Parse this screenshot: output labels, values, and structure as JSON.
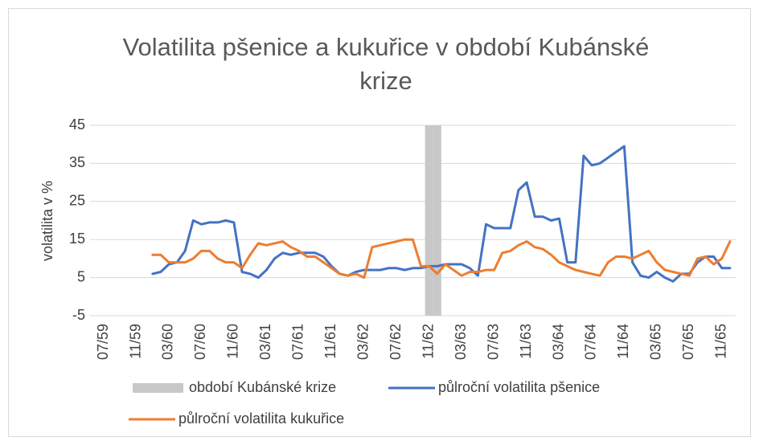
{
  "chart_data": {
    "type": "line",
    "title": "Volatilita pšenice a kukuřice v období Kubánské krize",
    "y_label": "volatilita v %",
    "categories": [
      "07/59",
      null,
      null,
      null,
      "11/59",
      null,
      null,
      null,
      "03/60",
      null,
      null,
      null,
      "07/60",
      null,
      null,
      null,
      "11/60",
      null,
      null,
      null,
      "03/61",
      null,
      null,
      null,
      "07/61",
      null,
      null,
      null,
      "11/61",
      null,
      null,
      null,
      "03/62",
      null,
      null,
      null,
      "07/62",
      null,
      null,
      null,
      "11/62",
      null,
      null,
      null,
      "03/63",
      null,
      null,
      null,
      "07/63",
      null,
      null,
      null,
      "11/63",
      null,
      null,
      null,
      "03/64",
      null,
      null,
      null,
      "07/64",
      null,
      null,
      null,
      "11/64",
      null,
      null,
      null,
      "03/65",
      null,
      null,
      null,
      "07/65",
      null,
      null,
      null,
      "11/65",
      null
    ],
    "series": [
      {
        "name": "období Kubánské krize",
        "type": "bar",
        "color": "#c8c8c8",
        "values": [
          null,
          null,
          null,
          null,
          null,
          null,
          null,
          null,
          null,
          null,
          null,
          null,
          null,
          null,
          null,
          null,
          null,
          null,
          null,
          null,
          null,
          null,
          null,
          null,
          null,
          null,
          null,
          null,
          null,
          null,
          null,
          null,
          null,
          null,
          null,
          null,
          null,
          null,
          null,
          null,
          45,
          45,
          null,
          null,
          null,
          null,
          null,
          null,
          null,
          null,
          null,
          null,
          null,
          null,
          null,
          null,
          null,
          null,
          null,
          null,
          null,
          null,
          null,
          null,
          null,
          null,
          null,
          null,
          null,
          null,
          null,
          null,
          null,
          null,
          null,
          null,
          null,
          null
        ]
      },
      {
        "name": "půlroční volatilita pšenice",
        "type": "line",
        "color": "#4472c4",
        "values": [
          null,
          null,
          null,
          null,
          null,
          null,
          6,
          6.5,
          8.5,
          9,
          12,
          20,
          19,
          19.5,
          19.5,
          20,
          19.5,
          6.5,
          6,
          5,
          7,
          10,
          11.5,
          11,
          11.5,
          11.5,
          11.5,
          10.5,
          8,
          6,
          5.5,
          6.5,
          7,
          7,
          7,
          7.5,
          7.5,
          7,
          7.5,
          7.5,
          8,
          8,
          8.5,
          8.5,
          8.5,
          7.5,
          5.5,
          19,
          18,
          18,
          18,
          28,
          30,
          21,
          21,
          20,
          20.5,
          9,
          9,
          37,
          34.5,
          35,
          36.5,
          38,
          39.5,
          9,
          5.5,
          5,
          6.5,
          5,
          4,
          6,
          6,
          9,
          10.5,
          10.5,
          7.5,
          7.5
        ]
      },
      {
        "name": "půlroční volatilita kukuřice",
        "type": "line",
        "color": "#ed7d31",
        "values": [
          null,
          null,
          null,
          null,
          null,
          null,
          11,
          11,
          9,
          9,
          9,
          10,
          12,
          12,
          10,
          9,
          9,
          7.5,
          11,
          14,
          13.5,
          14,
          14.5,
          13,
          12,
          10.5,
          10.5,
          9,
          7.5,
          6,
          5.5,
          6,
          5,
          13,
          13.5,
          14,
          14.5,
          15,
          15,
          8,
          8,
          6,
          8.5,
          7,
          5.5,
          6.5,
          6.5,
          7,
          7,
          11.5,
          12,
          13.5,
          14.5,
          13,
          12.5,
          11,
          9,
          8,
          7,
          6.5,
          6,
          5.5,
          9,
          10.5,
          10.5,
          10,
          11,
          12,
          9,
          7,
          6.5,
          6,
          5.5,
          10,
          10.5,
          8.5,
          10,
          14.5
        ]
      }
    ],
    "ylim": [
      -5,
      45
    ],
    "yticks": [
      -5,
      5,
      15,
      25,
      35,
      45
    ],
    "grid": true,
    "legend": "bottom"
  }
}
